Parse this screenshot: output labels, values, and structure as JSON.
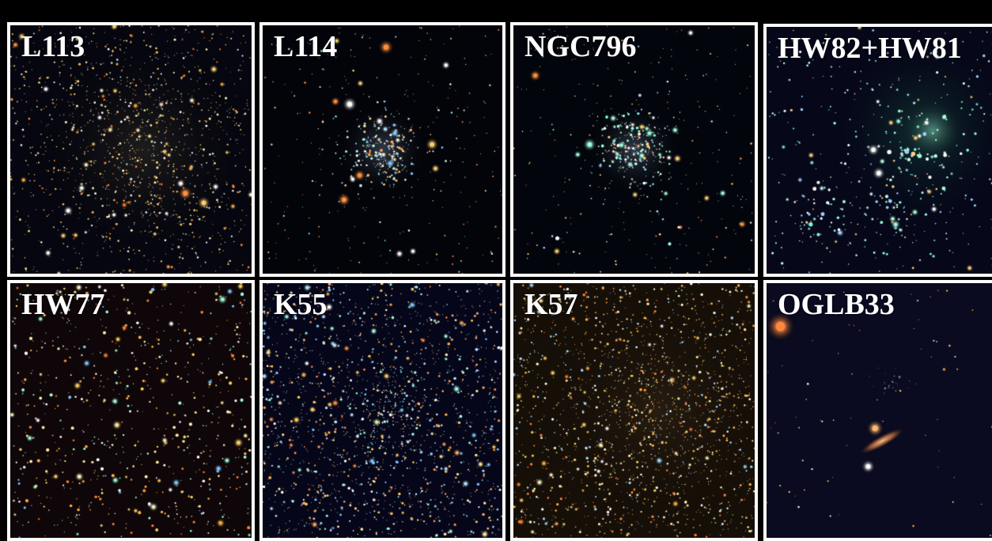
{
  "panels": [
    {
      "label": "L113",
      "type": "rich-cluster",
      "tint": "#e8d888",
      "bg": "#05060f"
    },
    {
      "label": "L114",
      "type": "compact-cluster",
      "tint": "#c8d8ff",
      "bg": "#03040a"
    },
    {
      "label": "NGC796",
      "type": "compact-cluster",
      "tint": "#a8ffe0",
      "bg": "#03050c"
    },
    {
      "label": "HW82+HW81",
      "type": "nebula-cluster",
      "tint": "#a8ffd8",
      "bg": "#06081a"
    },
    {
      "label": "HW77",
      "type": "sparse-field",
      "tint": "#ffd070",
      "bg": "#0e0608"
    },
    {
      "label": "K55",
      "type": "dense-field",
      "tint": "#c0e8ff",
      "bg": "#06061a"
    },
    {
      "label": "K57",
      "type": "dense-warm",
      "tint": "#f0d890",
      "bg": "#150f08"
    },
    {
      "label": "OGLB33",
      "type": "galaxy-field",
      "tint": "#ffb070",
      "bg": "#0a0a20"
    }
  ]
}
